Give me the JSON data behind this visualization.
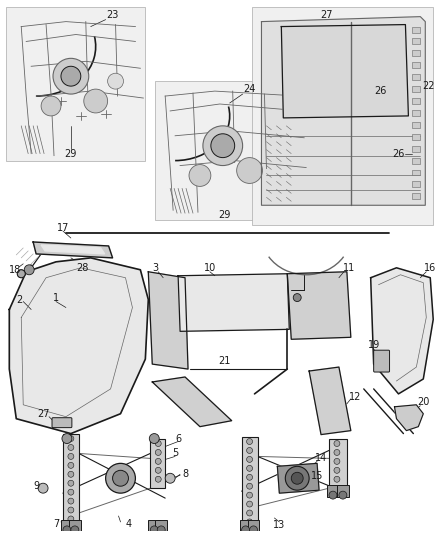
{
  "bg_color": "#ffffff",
  "fig_width": 4.38,
  "fig_height": 5.33,
  "dpi": 100,
  "dark": "#1a1a1a",
  "gray": "#666666",
  "lgray": "#aaaaaa",
  "part_fill": "#e8e8e8",
  "part_fill2": "#d0d0d0",
  "inset_fill": "#f0f0f0"
}
